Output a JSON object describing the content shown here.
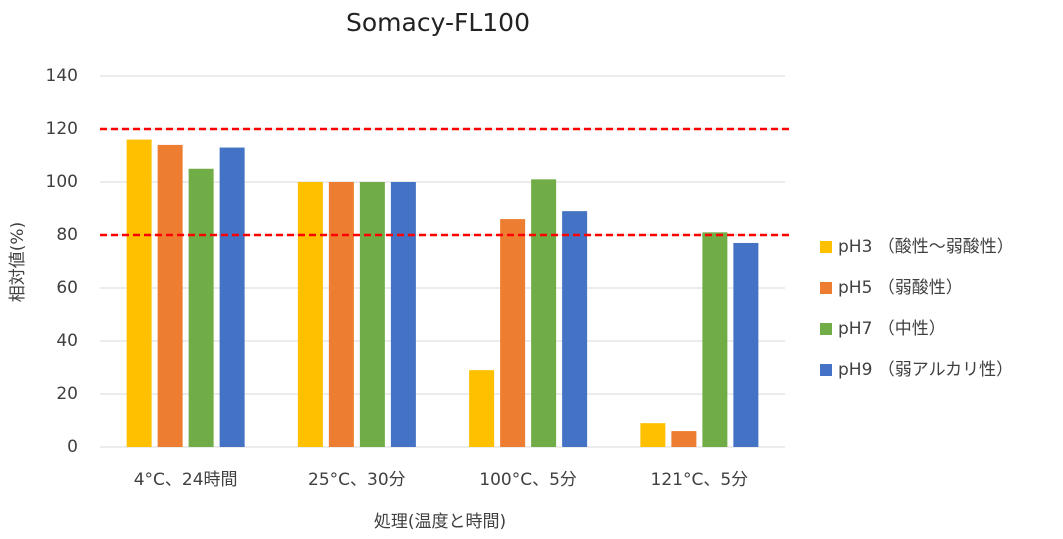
{
  "chart_data": {
    "type": "bar",
    "title": "Somacy-FL100",
    "y_label": "相対値(%)",
    "x_label": "処理(温度と時間)",
    "categories": [
      "4°C、24時間",
      "25°C、30分",
      "100°C、5分",
      "121°C、5分"
    ],
    "series": [
      {
        "name": "pH3 （酸性～弱酸性）",
        "color": "#ffc000",
        "values": [
          116,
          100,
          29,
          9
        ]
      },
      {
        "name": "pH5 （弱酸性）",
        "color": "#ed7d31",
        "values": [
          114,
          100,
          86,
          6
        ]
      },
      {
        "name": "pH7 （中性）",
        "color": "#70ad47",
        "values": [
          105,
          100,
          101,
          81
        ]
      },
      {
        "name": "pH9 （弱アルカリ性）",
        "color": "#4472c4",
        "values": [
          113,
          100,
          89,
          77
        ]
      }
    ],
    "ylim": [
      0,
      140
    ],
    "yticks": [
      0,
      20,
      40,
      60,
      80,
      100,
      120,
      140
    ],
    "grid": true,
    "reference_lines": [
      120,
      80
    ],
    "reference_color": "#ff0000",
    "legend": "right"
  }
}
